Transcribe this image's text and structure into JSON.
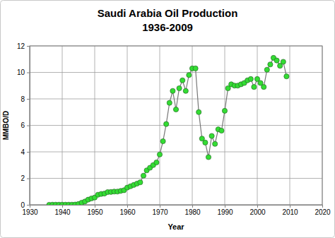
{
  "chart_data": {
    "type": "line",
    "title": [
      "Saudi Arabia Oil Production",
      "1936-2009"
    ],
    "x_label": "Year",
    "y_label": "MMBO/D",
    "x": [
      1936,
      1937,
      1938,
      1939,
      1940,
      1941,
      1942,
      1943,
      1944,
      1945,
      1946,
      1947,
      1948,
      1949,
      1950,
      1951,
      1952,
      1953,
      1954,
      1955,
      1956,
      1957,
      1958,
      1959,
      1960,
      1961,
      1962,
      1963,
      1964,
      1965,
      1966,
      1967,
      1968,
      1969,
      1970,
      1971,
      1972,
      1973,
      1974,
      1975,
      1976,
      1977,
      1978,
      1979,
      1980,
      1981,
      1982,
      1983,
      1984,
      1985,
      1986,
      1987,
      1988,
      1989,
      1990,
      1991,
      1992,
      1993,
      1994,
      1995,
      1996,
      1997,
      1998,
      1999,
      2000,
      2001,
      2002,
      2003,
      2004,
      2005,
      2006,
      2007,
      2008,
      2009
    ],
    "values": [
      0.0,
      0.01,
      0.01,
      0.01,
      0.01,
      0.01,
      0.01,
      0.01,
      0.02,
      0.06,
      0.16,
      0.25,
      0.39,
      0.48,
      0.55,
      0.76,
      0.82,
      0.85,
      0.96,
      0.97,
      1.0,
      1.0,
      1.05,
      1.1,
      1.3,
      1.4,
      1.5,
      1.6,
      1.7,
      2.2,
      2.6,
      2.8,
      3.0,
      3.2,
      3.8,
      4.8,
      6.1,
      7.7,
      8.6,
      7.2,
      8.8,
      9.4,
      8.6,
      9.8,
      10.3,
      10.3,
      7.0,
      5.0,
      4.7,
      3.6,
      5.2,
      4.6,
      5.7,
      5.6,
      7.1,
      8.8,
      9.1,
      9.0,
      9.0,
      9.1,
      9.2,
      9.4,
      9.5,
      8.9,
      9.5,
      9.2,
      8.9,
      10.2,
      10.6,
      11.1,
      10.9,
      10.5,
      10.8,
      9.7
    ],
    "color": "#33dd33",
    "marker": "circle",
    "line_style": "solid",
    "xlim": [
      1930,
      2020
    ],
    "xticks": [
      1930,
      1940,
      1950,
      1960,
      1970,
      1980,
      1990,
      2000,
      2010,
      2020
    ],
    "ylim": [
      0,
      12
    ],
    "yticks": [
      0,
      2,
      4,
      6,
      8,
      10,
      12
    ],
    "grid": true
  }
}
